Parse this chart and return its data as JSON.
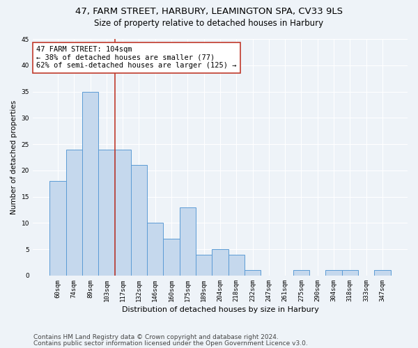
{
  "title1": "47, FARM STREET, HARBURY, LEAMINGTON SPA, CV33 9LS",
  "title2": "Size of property relative to detached houses in Harbury",
  "xlabel": "Distribution of detached houses by size in Harbury",
  "ylabel": "Number of detached properties",
  "categories": [
    "60sqm",
    "74sqm",
    "89sqm",
    "103sqm",
    "117sqm",
    "132sqm",
    "146sqm",
    "160sqm",
    "175sqm",
    "189sqm",
    "204sqm",
    "218sqm",
    "232sqm",
    "247sqm",
    "261sqm",
    "275sqm",
    "290sqm",
    "304sqm",
    "318sqm",
    "333sqm",
    "347sqm"
  ],
  "values": [
    18,
    24,
    35,
    24,
    24,
    21,
    10,
    7,
    13,
    4,
    5,
    4,
    1,
    0,
    0,
    1,
    0,
    1,
    1,
    0,
    1
  ],
  "bar_color": "#c5d8ed",
  "bar_edge_color": "#5b9bd5",
  "vline_x_index": 3,
  "vline_color": "#c0392b",
  "annotation_line1": "47 FARM STREET: 104sqm",
  "annotation_line2": "← 38% of detached houses are smaller (77)",
  "annotation_line3": "62% of semi-detached houses are larger (125) →",
  "annotation_box_color": "white",
  "annotation_box_edge_color": "#c0392b",
  "ylim": [
    0,
    45
  ],
  "yticks": [
    0,
    5,
    10,
    15,
    20,
    25,
    30,
    35,
    40,
    45
  ],
  "footer1": "Contains HM Land Registry data © Crown copyright and database right 2024.",
  "footer2": "Contains public sector information licensed under the Open Government Licence v3.0.",
  "bg_color": "#eef3f8",
  "plot_bg_color": "#eef3f8",
  "grid_color": "white",
  "title1_fontsize": 9.5,
  "title2_fontsize": 8.5,
  "ylabel_fontsize": 7.5,
  "xlabel_fontsize": 8,
  "annotation_fontsize": 7.5,
  "footer_fontsize": 6.5,
  "tick_fontsize": 6.5
}
